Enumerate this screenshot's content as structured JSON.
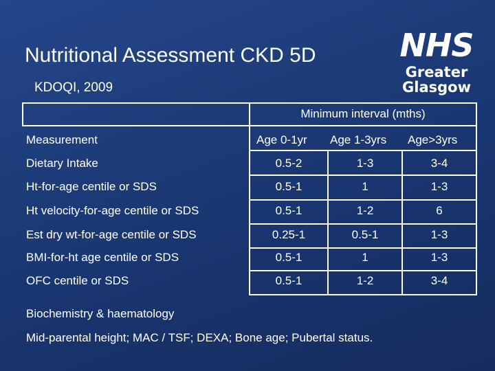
{
  "slide": {
    "title": "Nutritional Assessment CKD 5D",
    "subtitle": "KDOQI, 2009"
  },
  "logo": {
    "badge_text": "NHS",
    "line1": "Greater",
    "line2": "Glasgow"
  },
  "table": {
    "group_header": "Minimum interval (mths)",
    "columns": [
      "Measurement",
      "Age 0-1yr",
      "Age 1-3yrs",
      "Age>3yrs"
    ],
    "rows": [
      [
        "Dietary Intake",
        "0.5-2",
        "1-3",
        "3-4"
      ],
      [
        "Ht-for-age centile or SDS",
        "0.5-1",
        "1",
        "1-3"
      ],
      [
        "Ht velocity-for-age centile or SDS",
        "0.5-1",
        "1-2",
        "6"
      ],
      [
        "Est dry wt-for-age centile or SDS",
        "0.25-1",
        "0.5-1",
        "1-3"
      ],
      [
        "BMI-for-ht age centile or SDS",
        "0.5-1",
        "1",
        "1-3"
      ],
      [
        "OFC centile or SDS",
        "0.5-1",
        "1-2",
        "3-4"
      ]
    ]
  },
  "footer": {
    "line1": "Biochemistry & haematology",
    "line2": "Mid-parental height; MAC / TSF; DEXA; Bone age; Pubertal status."
  },
  "colors": {
    "background": "#1d3b78",
    "text": "#ffffff"
  }
}
